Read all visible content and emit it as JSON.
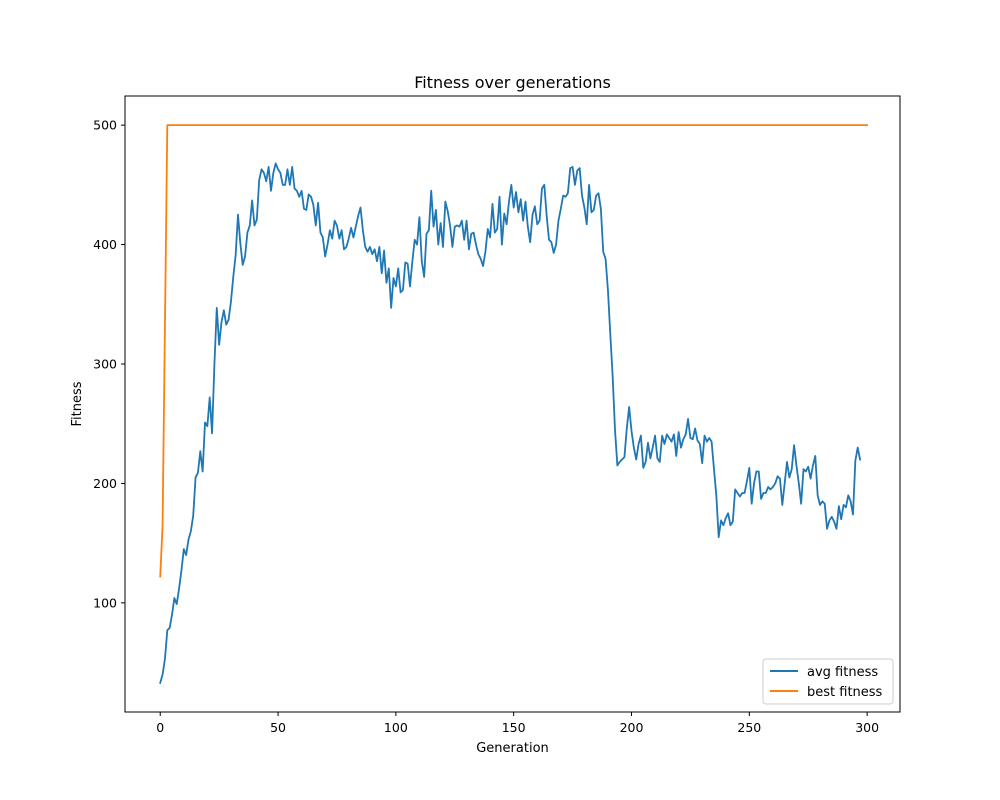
{
  "chart_data": {
    "type": "line",
    "title": "Fitness over generations",
    "xlabel": "Generation",
    "ylabel": "Fitness",
    "xlim": [
      -14.95,
      313.95
    ],
    "ylim": [
      8.6,
      524.4
    ],
    "xticks": [
      0,
      50,
      100,
      150,
      200,
      250,
      300
    ],
    "yticks": [
      100,
      200,
      300,
      400,
      500
    ],
    "grid": false,
    "legend": "lower right",
    "series": [
      {
        "name": "avg fitness",
        "color": "#1f77b4",
        "x_start": 0,
        "x_step": 1,
        "values": [
          33,
          40,
          53,
          77,
          79,
          90,
          104,
          99,
          112,
          127,
          145,
          140,
          153,
          160,
          173,
          205,
          209,
          227,
          210,
          251,
          248,
          272,
          242,
          300,
          347,
          316,
          335,
          345,
          333,
          337,
          352,
          373,
          391,
          425,
          401,
          383,
          390,
          410,
          416,
          437,
          416,
          421,
          454,
          463,
          460,
          453,
          465,
          445,
          460,
          468,
          463,
          460,
          450,
          450,
          463,
          450,
          465,
          447,
          445,
          440,
          445,
          430,
          429,
          442,
          440,
          433,
          416,
          435,
          410,
          406,
          390,
          400,
          412,
          405,
          420,
          416,
          405,
          412,
          396,
          398,
          405,
          414,
          406,
          415,
          424,
          431,
          412,
          398,
          394,
          398,
          392,
          396,
          386,
          398,
          376,
          395,
          368,
          380,
          347,
          372,
          365,
          380,
          360,
          362,
          385,
          384,
          365,
          386,
          404,
          400,
          423,
          386,
          373,
          409,
          412,
          445,
          415,
          429,
          400,
          418,
          398,
          436,
          428,
          416,
          398,
          415,
          416,
          415,
          420,
          404,
          420,
          396,
          409,
          410,
          400,
          392,
          388,
          382,
          394,
          413,
          406,
          434,
          410,
          413,
          440,
          400,
          426,
          417,
          436,
          450,
          431,
          444,
          427,
          438,
          420,
          436,
          415,
          402,
          425,
          432,
          417,
          420,
          447,
          450,
          424,
          404,
          402,
          393,
          400,
          420,
          430,
          441,
          440,
          443,
          464,
          465,
          450,
          462,
          464,
          441,
          431,
          417,
          450,
          427,
          429,
          441,
          443,
          430,
          394,
          388,
          362,
          325,
          290,
          245,
          215,
          218,
          220,
          222,
          246,
          264,
          244,
          230,
          220,
          233,
          240,
          213,
          218,
          234,
          221,
          230,
          240,
          221,
          218,
          240,
          233,
          241,
          238,
          235,
          241,
          223,
          243,
          230,
          237,
          241,
          254,
          238,
          237,
          246,
          236,
          233,
          217,
          240,
          235,
          238,
          235,
          212,
          190,
          155,
          169,
          165,
          171,
          175,
          165,
          168,
          195,
          192,
          189,
          192,
          192,
          202,
          213,
          183,
          200,
          210,
          210,
          187,
          192,
          192,
          197,
          195,
          197,
          200,
          206,
          204,
          182,
          200,
          218,
          205,
          212,
          232,
          215,
          200,
          183,
          212,
          210,
          214,
          204,
          215,
          223,
          190,
          182,
          185,
          183,
          162,
          169,
          172,
          168,
          162,
          181,
          170,
          182,
          180,
          190,
          185,
          174,
          219,
          230,
          220
        ]
      },
      {
        "name": "best fitness",
        "color": "#ff7f0e",
        "x": [
          0,
          1,
          3,
          300
        ],
        "values": [
          122,
          165,
          500,
          500
        ]
      }
    ]
  }
}
